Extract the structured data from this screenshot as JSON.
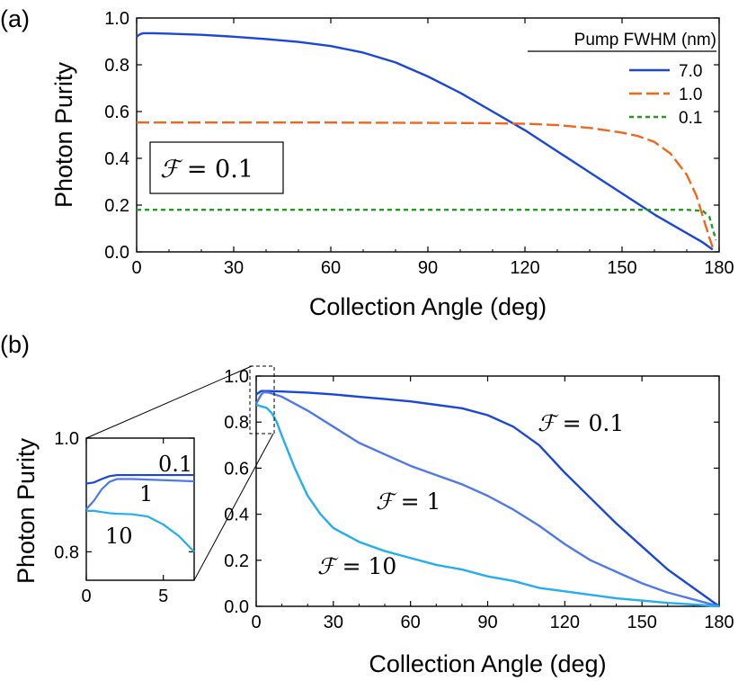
{
  "chart_data": [
    {
      "panel_label": "(a)",
      "type": "line",
      "xlabel": "Collection Angle (deg)",
      "ylabel": "Photon Purity",
      "xlim": [
        0,
        180
      ],
      "ylim": [
        0,
        1
      ],
      "xticks": [
        0,
        30,
        60,
        90,
        120,
        150,
        180
      ],
      "xtick_labels": [
        "0",
        "30",
        "60",
        "90",
        "120",
        "150",
        "180"
      ],
      "yticks": [
        0,
        0.2,
        0.4,
        0.6,
        0.8,
        1.0
      ],
      "ytick_labels": [
        "0.0",
        "0.2",
        "0.4",
        "0.6",
        "0.8",
        "1.0"
      ],
      "grid": false,
      "legend_title": "Pump FWHM (nm)",
      "legend_position": "top-right",
      "annotation": {
        "symbol": "ℱ",
        "eq": " = ",
        "value": "0.1"
      },
      "series": [
        {
          "name": "7.0",
          "color": "#1a47d8",
          "dash": "solid",
          "x": [
            0,
            1,
            2,
            5,
            10,
            20,
            30,
            40,
            50,
            60,
            70,
            80,
            90,
            100,
            110,
            120,
            130,
            140,
            150,
            160,
            170,
            175,
            178
          ],
          "y": [
            0.92,
            0.93,
            0.935,
            0.935,
            0.933,
            0.928,
            0.92,
            0.91,
            0.898,
            0.88,
            0.852,
            0.81,
            0.75,
            0.68,
            0.6,
            0.52,
            0.43,
            0.34,
            0.25,
            0.16,
            0.08,
            0.04,
            0.01
          ]
        },
        {
          "name": "1.0",
          "color": "#f2661c",
          "dash": "dash",
          "x": [
            0,
            20,
            40,
            60,
            80,
            100,
            110,
            120,
            130,
            140,
            150,
            155,
            160,
            165,
            170,
            173,
            175,
            177,
            178
          ],
          "y": [
            0.553,
            0.553,
            0.553,
            0.553,
            0.552,
            0.551,
            0.55,
            0.548,
            0.542,
            0.53,
            0.51,
            0.495,
            0.47,
            0.42,
            0.33,
            0.24,
            0.15,
            0.06,
            0.02
          ]
        },
        {
          "name": "0.1",
          "color": "#1f9d1f",
          "dash": "dot",
          "x": [
            0,
            30,
            60,
            90,
            120,
            150,
            170,
            175,
            177,
            178,
            179
          ],
          "y": [
            0.18,
            0.18,
            0.18,
            0.18,
            0.18,
            0.18,
            0.18,
            0.175,
            0.15,
            0.1,
            0.05
          ]
        }
      ]
    },
    {
      "panel_label": "(b)",
      "type": "line",
      "xlabel": "Collection Angle (deg)",
      "ylabel": "Photon Purity",
      "xlim": [
        0,
        180
      ],
      "ylim": [
        0,
        1
      ],
      "xticks": [
        0,
        30,
        60,
        90,
        120,
        150,
        180
      ],
      "xtick_labels": [
        "0",
        "30",
        "60",
        "90",
        "120",
        "150",
        "180"
      ],
      "yticks": [
        0,
        0.2,
        0.4,
        0.6,
        0.8,
        1.0
      ],
      "ytick_labels": [
        "0.0",
        "0.2",
        "0.4",
        "0.6",
        "0.8",
        "1.0"
      ],
      "grid": false,
      "series": [
        {
          "color": "#1a47d8",
          "label": {
            "symbol": "ℱ",
            "eq": " = ",
            "value": "0.1"
          },
          "x": [
            0,
            2,
            5,
            10,
            20,
            30,
            40,
            50,
            60,
            70,
            80,
            90,
            100,
            110,
            120,
            130,
            140,
            150,
            160,
            170,
            180
          ],
          "y": [
            0.92,
            0.935,
            0.935,
            0.933,
            0.928,
            0.92,
            0.91,
            0.9,
            0.89,
            0.875,
            0.86,
            0.83,
            0.78,
            0.7,
            0.58,
            0.47,
            0.36,
            0.26,
            0.16,
            0.08,
            0.0
          ]
        },
        {
          "color": "#4f79e8",
          "label": {
            "symbol": "ℱ",
            "eq": " = ",
            "value": "1"
          },
          "x": [
            0,
            1,
            2,
            3,
            5,
            10,
            20,
            30,
            40,
            50,
            60,
            70,
            80,
            90,
            100,
            110,
            120,
            130,
            140,
            150,
            160,
            170,
            180
          ],
          "y": [
            0.88,
            0.9,
            0.92,
            0.93,
            0.928,
            0.91,
            0.85,
            0.78,
            0.71,
            0.66,
            0.61,
            0.57,
            0.53,
            0.48,
            0.42,
            0.35,
            0.27,
            0.2,
            0.15,
            0.1,
            0.06,
            0.03,
            0.0
          ]
        },
        {
          "color": "#22aef0",
          "label": {
            "symbol": "ℱ",
            "eq": " = ",
            "value": "10"
          },
          "x": [
            0,
            2,
            4,
            6,
            8,
            10,
            15,
            20,
            25,
            30,
            40,
            50,
            60,
            70,
            80,
            90,
            100,
            110,
            120,
            130,
            140,
            150,
            160,
            170,
            180
          ],
          "y": [
            0.875,
            0.868,
            0.862,
            0.84,
            0.8,
            0.74,
            0.6,
            0.48,
            0.4,
            0.34,
            0.28,
            0.24,
            0.21,
            0.18,
            0.16,
            0.13,
            0.11,
            0.08,
            0.065,
            0.05,
            0.035,
            0.025,
            0.015,
            0.008,
            0.0
          ]
        }
      ]
    },
    {
      "panel_label": "",
      "type": "line",
      "role": "inset",
      "xlabel": "",
      "ylabel": "Photon Purity",
      "xlim": [
        0,
        7
      ],
      "ylim": [
        0.75,
        1.0
      ],
      "xticks": [
        0,
        5
      ],
      "xtick_labels": [
        "0",
        "5"
      ],
      "yticks": [
        0.8,
        1.0
      ],
      "ytick_labels": [
        "0.8",
        "1.0"
      ],
      "grid": false,
      "series": [
        {
          "color": "#1a47d8",
          "label": "0.1",
          "x": [
            0,
            0.5,
            1,
            1.5,
            2,
            3,
            4,
            5,
            6,
            7
          ],
          "y": [
            0.92,
            0.922,
            0.928,
            0.933,
            0.935,
            0.935,
            0.935,
            0.935,
            0.935,
            0.935
          ]
        },
        {
          "color": "#4f79e8",
          "label": "1",
          "x": [
            0,
            0.5,
            1,
            1.5,
            2,
            3,
            4,
            5,
            6,
            7
          ],
          "y": [
            0.875,
            0.89,
            0.91,
            0.923,
            0.928,
            0.928,
            0.927,
            0.926,
            0.925,
            0.924
          ]
        },
        {
          "color": "#22aef0",
          "label": "10",
          "x": [
            0,
            0.5,
            1,
            1.5,
            2,
            3,
            4,
            5,
            6,
            7
          ],
          "y": [
            0.872,
            0.872,
            0.87,
            0.868,
            0.867,
            0.866,
            0.862,
            0.848,
            0.828,
            0.8
          ]
        }
      ]
    }
  ]
}
